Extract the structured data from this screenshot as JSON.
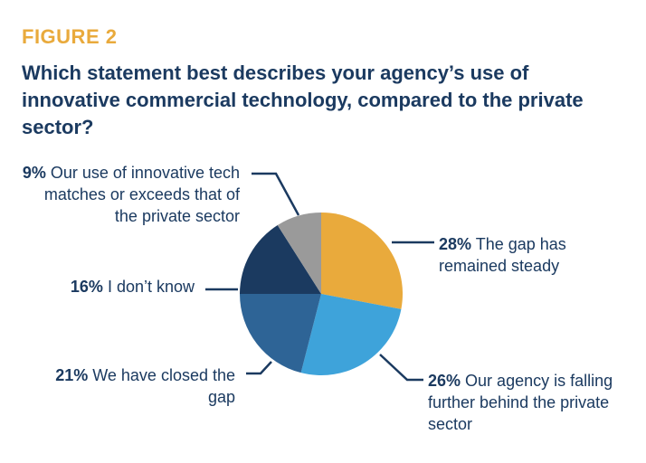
{
  "figure_label": "FIGURE 2",
  "chart_data": {
    "type": "pie",
    "title": "Which statement best describes your agency’s use of innovative commercial technology, compared to the private sector?",
    "start": "12 o'clock, clockwise",
    "slices": [
      {
        "pct": "28%",
        "value": 28,
        "text": "The gap has remained steady",
        "color": "#e9aa3c"
      },
      {
        "pct": "26%",
        "value": 26,
        "text": "Our agency is falling further behind the private sector",
        "color": "#3ea3da"
      },
      {
        "pct": "21%",
        "value": 21,
        "text": "We have closed the gap",
        "color": "#2e6496"
      },
      {
        "pct": "16%",
        "value": 16,
        "text": "I don’t know",
        "color": "#1b3a60"
      },
      {
        "pct": "9%",
        "value": 9,
        "text": "Our use of innovative tech matches or exceeds that of the private sector",
        "color": "#9a9a9a"
      }
    ],
    "leader_color": "#1b3a60"
  }
}
